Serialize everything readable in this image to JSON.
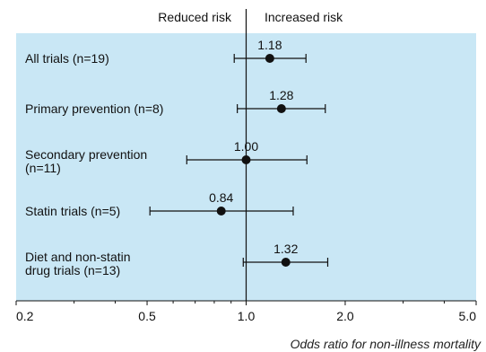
{
  "chart_data": {
    "type": "forest",
    "title": "",
    "x_scale": "log",
    "xlim": [
      0.2,
      5.0
    ],
    "xlabel": "Odds ratio for non-illness mortality",
    "x_ticks": [
      "0.2",
      "0.5",
      "1.0",
      "2.0",
      "5.0"
    ],
    "x_tick_values": [
      0.2,
      0.5,
      1.0,
      2.0,
      5.0
    ],
    "reference_line": 1.0,
    "direction_labels": {
      "left": "Reduced risk",
      "right": "Increased risk"
    },
    "rows": [
      {
        "label": [
          "All trials (n=19)"
        ],
        "or": 1.18,
        "or_label": "1.18",
        "ci": [
          0.92,
          1.52
        ]
      },
      {
        "label": [
          "Primary prevention (n=8)"
        ],
        "or": 1.28,
        "or_label": "1.28",
        "ci": [
          0.94,
          1.74
        ]
      },
      {
        "label": [
          "Secondary prevention",
          "(n=11)"
        ],
        "or": 1.0,
        "or_label": "1.00",
        "ci": [
          0.66,
          1.53
        ]
      },
      {
        "label": [
          "Statin trials (n=5)"
        ],
        "or": 0.84,
        "or_label": "0.84",
        "ci": [
          0.51,
          1.39
        ]
      },
      {
        "label": [
          "Diet and non-statin",
          "drug trials (n=13)"
        ],
        "or": 1.32,
        "or_label": "1.32",
        "ci": [
          0.98,
          1.77
        ]
      }
    ]
  },
  "colors": {
    "panel": "#c9e7f5",
    "ink": "#111111"
  }
}
